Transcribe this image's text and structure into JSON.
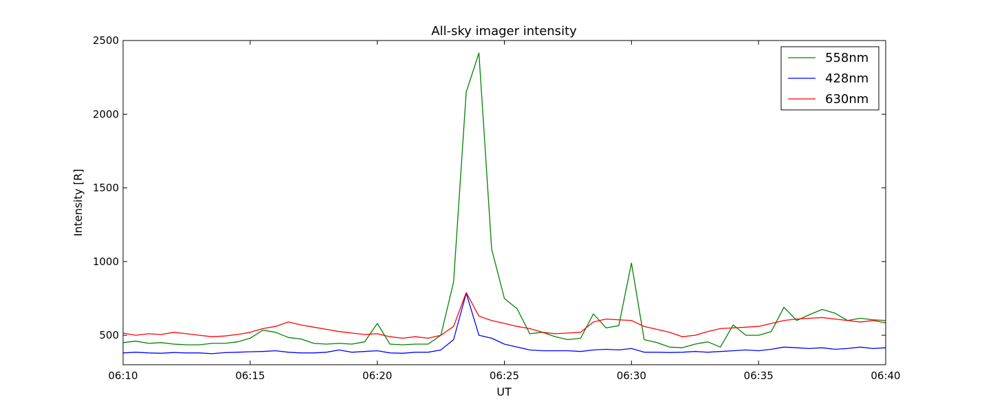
{
  "chart_data": {
    "type": "line",
    "title": "All-sky imager intensity",
    "xlabel": "UT",
    "ylabel": "Intensity [R]",
    "x_unit": "UT time",
    "x_range": [
      "06:10",
      "06:40"
    ],
    "ylim": [
      300,
      2500
    ],
    "x_ticks": [
      "06:10",
      "06:15",
      "06:20",
      "06:25",
      "06:30",
      "06:35",
      "06:40"
    ],
    "y_ticks": [
      500,
      1000,
      1500,
      2000,
      2500
    ],
    "grid": false,
    "legend_position": "upper-right",
    "series": [
      {
        "name": "558nm",
        "color": "#008000",
        "points": [
          [
            "06:10:00",
            450
          ],
          [
            "06:10:30",
            460
          ],
          [
            "06:11:00",
            445
          ],
          [
            "06:11:30",
            450
          ],
          [
            "06:12:00",
            440
          ],
          [
            "06:12:30",
            435
          ],
          [
            "06:13:00",
            435
          ],
          [
            "06:13:30",
            445
          ],
          [
            "06:14:00",
            445
          ],
          [
            "06:14:30",
            455
          ],
          [
            "06:15:00",
            480
          ],
          [
            "06:15:30",
            535
          ],
          [
            "06:16:00",
            520
          ],
          [
            "06:16:30",
            485
          ],
          [
            "06:17:00",
            475
          ],
          [
            "06:17:30",
            445
          ],
          [
            "06:18:00",
            440
          ],
          [
            "06:18:30",
            445
          ],
          [
            "06:19:00",
            440
          ],
          [
            "06:19:30",
            455
          ],
          [
            "06:20:00",
            580
          ],
          [
            "06:20:30",
            440
          ],
          [
            "06:21:00",
            435
          ],
          [
            "06:21:30",
            440
          ],
          [
            "06:22:00",
            440
          ],
          [
            "06:22:30",
            500
          ],
          [
            "06:23:00",
            860
          ],
          [
            "06:23:30",
            2150
          ],
          [
            "06:24:00",
            2415
          ],
          [
            "06:24:30",
            1085
          ],
          [
            "06:25:00",
            750
          ],
          [
            "06:25:30",
            680
          ],
          [
            "06:26:00",
            510
          ],
          [
            "06:26:30",
            520
          ],
          [
            "06:27:00",
            490
          ],
          [
            "06:27:30",
            470
          ],
          [
            "06:28:00",
            480
          ],
          [
            "06:28:30",
            645
          ],
          [
            "06:29:00",
            550
          ],
          [
            "06:29:30",
            565
          ],
          [
            "06:30:00",
            990
          ],
          [
            "06:30:30",
            470
          ],
          [
            "06:31:00",
            450
          ],
          [
            "06:31:30",
            420
          ],
          [
            "06:32:00",
            415
          ],
          [
            "06:32:30",
            440
          ],
          [
            "06:33:00",
            455
          ],
          [
            "06:33:30",
            420
          ],
          [
            "06:34:00",
            570
          ],
          [
            "06:34:30",
            500
          ],
          [
            "06:35:00",
            500
          ],
          [
            "06:35:30",
            525
          ],
          [
            "06:36:00",
            690
          ],
          [
            "06:36:30",
            600
          ],
          [
            "06:37:00",
            640
          ],
          [
            "06:37:30",
            675
          ],
          [
            "06:38:00",
            650
          ],
          [
            "06:38:30",
            600
          ],
          [
            "06:39:00",
            615
          ],
          [
            "06:39:30",
            605
          ],
          [
            "06:40:00",
            600
          ]
        ]
      },
      {
        "name": "428nm",
        "color": "#0000ff",
        "points": [
          [
            "06:10:00",
            380
          ],
          [
            "06:10:30",
            385
          ],
          [
            "06:11:00",
            380
          ],
          [
            "06:11:30",
            378
          ],
          [
            "06:12:00",
            383
          ],
          [
            "06:12:30",
            380
          ],
          [
            "06:13:00",
            380
          ],
          [
            "06:13:30",
            375
          ],
          [
            "06:14:00",
            382
          ],
          [
            "06:14:30",
            385
          ],
          [
            "06:15:00",
            388
          ],
          [
            "06:15:30",
            390
          ],
          [
            "06:16:00",
            395
          ],
          [
            "06:16:30",
            385
          ],
          [
            "06:17:00",
            380
          ],
          [
            "06:17:30",
            380
          ],
          [
            "06:18:00",
            385
          ],
          [
            "06:18:30",
            400
          ],
          [
            "06:19:00",
            385
          ],
          [
            "06:19:30",
            390
          ],
          [
            "06:20:00",
            395
          ],
          [
            "06:20:30",
            380
          ],
          [
            "06:21:00",
            378
          ],
          [
            "06:21:30",
            385
          ],
          [
            "06:22:00",
            385
          ],
          [
            "06:22:30",
            400
          ],
          [
            "06:23:00",
            470
          ],
          [
            "06:23:30",
            785
          ],
          [
            "06:24:00",
            500
          ],
          [
            "06:24:30",
            480
          ],
          [
            "06:25:00",
            440
          ],
          [
            "06:25:30",
            420
          ],
          [
            "06:26:00",
            400
          ],
          [
            "06:26:30",
            395
          ],
          [
            "06:27:00",
            395
          ],
          [
            "06:27:30",
            395
          ],
          [
            "06:28:00",
            390
          ],
          [
            "06:28:30",
            400
          ],
          [
            "06:29:00",
            405
          ],
          [
            "06:29:30",
            400
          ],
          [
            "06:30:00",
            410
          ],
          [
            "06:30:30",
            385
          ],
          [
            "06:31:00",
            385
          ],
          [
            "06:31:30",
            383
          ],
          [
            "06:32:00",
            385
          ],
          [
            "06:32:30",
            390
          ],
          [
            "06:33:00",
            385
          ],
          [
            "06:33:30",
            390
          ],
          [
            "06:34:00",
            395
          ],
          [
            "06:34:30",
            400
          ],
          [
            "06:35:00",
            395
          ],
          [
            "06:35:30",
            405
          ],
          [
            "06:36:00",
            420
          ],
          [
            "06:36:30",
            415
          ],
          [
            "06:37:00",
            410
          ],
          [
            "06:37:30",
            415
          ],
          [
            "06:38:00",
            405
          ],
          [
            "06:38:30",
            410
          ],
          [
            "06:39:00",
            420
          ],
          [
            "06:39:30",
            410
          ],
          [
            "06:40:00",
            415
          ]
        ]
      },
      {
        "name": "630nm",
        "color": "#ff0000",
        "points": [
          [
            "06:10:00",
            515
          ],
          [
            "06:10:30",
            500
          ],
          [
            "06:11:00",
            510
          ],
          [
            "06:11:30",
            505
          ],
          [
            "06:12:00",
            520
          ],
          [
            "06:12:30",
            510
          ],
          [
            "06:13:00",
            500
          ],
          [
            "06:13:30",
            490
          ],
          [
            "06:14:00",
            495
          ],
          [
            "06:14:30",
            505
          ],
          [
            "06:15:00",
            520
          ],
          [
            "06:15:30",
            545
          ],
          [
            "06:16:00",
            560
          ],
          [
            "06:16:30",
            590
          ],
          [
            "06:17:00",
            570
          ],
          [
            "06:17:30",
            555
          ],
          [
            "06:18:00",
            540
          ],
          [
            "06:18:30",
            525
          ],
          [
            "06:19:00",
            515
          ],
          [
            "06:19:30",
            505
          ],
          [
            "06:20:00",
            510
          ],
          [
            "06:20:30",
            490
          ],
          [
            "06:21:00",
            480
          ],
          [
            "06:21:30",
            490
          ],
          [
            "06:22:00",
            480
          ],
          [
            "06:22:30",
            500
          ],
          [
            "06:23:00",
            560
          ],
          [
            "06:23:30",
            790
          ],
          [
            "06:24:00",
            630
          ],
          [
            "06:24:30",
            600
          ],
          [
            "06:25:00",
            580
          ],
          [
            "06:25:30",
            560
          ],
          [
            "06:26:00",
            545
          ],
          [
            "06:26:30",
            520
          ],
          [
            "06:27:00",
            510
          ],
          [
            "06:27:30",
            515
          ],
          [
            "06:28:00",
            520
          ],
          [
            "06:28:30",
            590
          ],
          [
            "06:29:00",
            610
          ],
          [
            "06:29:30",
            605
          ],
          [
            "06:30:00",
            600
          ],
          [
            "06:30:30",
            560
          ],
          [
            "06:31:00",
            540
          ],
          [
            "06:31:30",
            520
          ],
          [
            "06:32:00",
            490
          ],
          [
            "06:32:30",
            500
          ],
          [
            "06:33:00",
            525
          ],
          [
            "06:33:30",
            545
          ],
          [
            "06:34:00",
            550
          ],
          [
            "06:34:30",
            555
          ],
          [
            "06:35:00",
            560
          ],
          [
            "06:35:30",
            580
          ],
          [
            "06:36:00",
            600
          ],
          [
            "06:36:30",
            610
          ],
          [
            "06:37:00",
            615
          ],
          [
            "06:37:30",
            620
          ],
          [
            "06:38:00",
            610
          ],
          [
            "06:38:30",
            600
          ],
          [
            "06:39:00",
            590
          ],
          [
            "06:39:30",
            600
          ],
          [
            "06:40:00",
            585
          ]
        ]
      }
    ]
  }
}
